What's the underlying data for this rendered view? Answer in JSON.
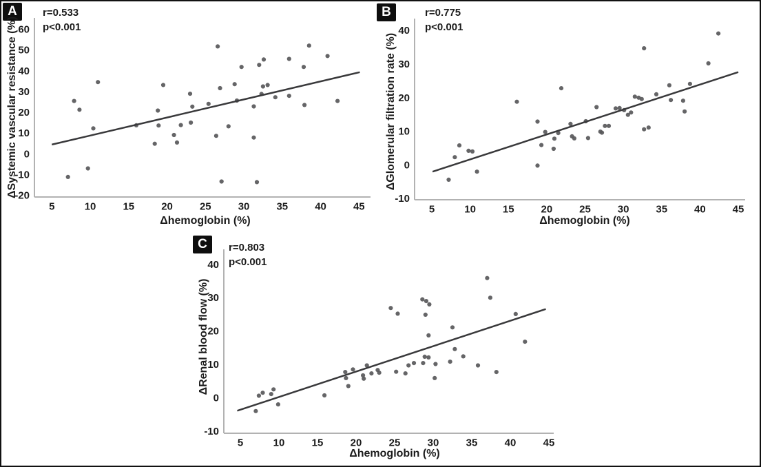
{
  "figure": {
    "background": "#ffffff",
    "border_color": "#111111"
  },
  "colors": {
    "point": "#58585a",
    "trendline": "#39393b",
    "axis": "#b2b2b2",
    "text": "#1c1c1c",
    "badge_bg": "#0e0e0e",
    "badge_text": "#ffffff"
  },
  "chart_data": [
    {
      "type": "scatter",
      "panel": "A",
      "annotation_r": "r=0.533",
      "annotation_p": "p<0.001",
      "xlabel": "Δhemoglobin (%)",
      "ylabel": "ΔSystemic vascular resistance (%)",
      "xticks": [
        5,
        10,
        15,
        20,
        25,
        30,
        35,
        40,
        45
      ],
      "yticks": [
        -20,
        -10,
        0,
        10,
        20,
        30,
        40,
        50,
        60
      ],
      "xlim": [
        2.7,
        46.5
      ],
      "ylim": [
        -20.7,
        65.6
      ],
      "grid": false,
      "legend": false,
      "trendline": [
        [
          5.0,
          4.6
        ],
        [
          45.1,
          39.5
        ]
      ],
      "points": [
        [
          7.1,
          -11.0
        ],
        [
          7.9,
          25.6
        ],
        [
          8.6,
          21.4
        ],
        [
          9.7,
          -6.9
        ],
        [
          10.4,
          12.4
        ],
        [
          11.0,
          34.7
        ],
        [
          16.0,
          13.9
        ],
        [
          18.4,
          5.0
        ],
        [
          18.8,
          21.0
        ],
        [
          18.9,
          13.8
        ],
        [
          19.5,
          33.3
        ],
        [
          20.9,
          9.2
        ],
        [
          21.3,
          5.6
        ],
        [
          21.8,
          14.0
        ],
        [
          23.0,
          29.1
        ],
        [
          23.1,
          15.2
        ],
        [
          23.3,
          22.9
        ],
        [
          25.4,
          24.2
        ],
        [
          26.4,
          8.8
        ],
        [
          26.6,
          51.9
        ],
        [
          26.9,
          31.8
        ],
        [
          27.1,
          -13.2
        ],
        [
          28.0,
          13.4
        ],
        [
          28.8,
          33.7
        ],
        [
          29.1,
          25.8
        ],
        [
          29.7,
          42.0
        ],
        [
          31.3,
          23.0
        ],
        [
          31.3,
          8.0
        ],
        [
          31.7,
          -13.5
        ],
        [
          32.0,
          43.0
        ],
        [
          32.3,
          29.0
        ],
        [
          32.5,
          32.6
        ],
        [
          32.6,
          45.6
        ],
        [
          33.1,
          33.3
        ],
        [
          34.1,
          27.4
        ],
        [
          35.9,
          45.9
        ],
        [
          35.9,
          28.1
        ],
        [
          37.8,
          42.0
        ],
        [
          37.9,
          23.7
        ],
        [
          38.5,
          52.3
        ],
        [
          40.9,
          47.3
        ],
        [
          42.2,
          25.6
        ]
      ]
    },
    {
      "type": "scatter",
      "panel": "B",
      "annotation_r": "r=0.775",
      "annotation_p": "p<0.001",
      "xlabel": "Δhemoglobin (%)",
      "ylabel": "ΔGlomerular filtration rate (%)",
      "xticks": [
        5,
        10,
        15,
        20,
        25,
        30,
        35,
        40,
        45
      ],
      "yticks": [
        -10,
        0,
        10,
        20,
        30,
        40
      ],
      "xlim": [
        2.75,
        45.9
      ],
      "ylim": [
        -10.3,
        43.6
      ],
      "grid": false,
      "legend": false,
      "trendline": [
        [
          5.1,
          -1.9
        ],
        [
          45.0,
          27.7
        ]
      ],
      "points": [
        [
          7.2,
          -4.3
        ],
        [
          8.0,
          2.4
        ],
        [
          8.6,
          5.9
        ],
        [
          9.8,
          4.3
        ],
        [
          10.3,
          4.1
        ],
        [
          10.9,
          -1.9
        ],
        [
          16.1,
          18.9
        ],
        [
          18.8,
          13.0
        ],
        [
          18.8,
          -0.1
        ],
        [
          19.3,
          6.0
        ],
        [
          19.8,
          9.9
        ],
        [
          20.9,
          4.9
        ],
        [
          21.0,
          7.9
        ],
        [
          21.5,
          9.6
        ],
        [
          21.9,
          22.9
        ],
        [
          23.1,
          12.3
        ],
        [
          23.3,
          8.6
        ],
        [
          23.6,
          8.0
        ],
        [
          25.1,
          13.1
        ],
        [
          25.4,
          8.1
        ],
        [
          26.5,
          17.3
        ],
        [
          27.0,
          10.0
        ],
        [
          27.2,
          9.7
        ],
        [
          27.6,
          11.7
        ],
        [
          28.1,
          11.7
        ],
        [
          29.0,
          16.9
        ],
        [
          29.5,
          17.0
        ],
        [
          30.1,
          16.4
        ],
        [
          30.6,
          15.0
        ],
        [
          31.0,
          15.7
        ],
        [
          31.5,
          20.4
        ],
        [
          32.0,
          20.1
        ],
        [
          32.4,
          19.7
        ],
        [
          32.7,
          10.7
        ],
        [
          33.3,
          11.2
        ],
        [
          32.7,
          34.8
        ],
        [
          34.3,
          21.1
        ],
        [
          36.0,
          23.8
        ],
        [
          36.2,
          19.4
        ],
        [
          37.8,
          19.2
        ],
        [
          38.0,
          16.0
        ],
        [
          38.7,
          24.2
        ],
        [
          41.1,
          30.3
        ],
        [
          42.4,
          39.2
        ]
      ]
    },
    {
      "type": "scatter",
      "panel": "C",
      "annotation_r": "r=0.803",
      "annotation_p": "p<0.001",
      "xlabel": "Δhemoglobin (%)",
      "ylabel": "ΔRenal blood flow (%)",
      "xticks": [
        5,
        10,
        15,
        20,
        25,
        30,
        35,
        40,
        45
      ],
      "yticks": [
        -10,
        0,
        10,
        20,
        30,
        40
      ],
      "xlim": [
        2.86,
        45.4
      ],
      "ylim": [
        -10.6,
        44.6
      ],
      "grid": false,
      "legend": false,
      "trendline": [
        [
          4.6,
          -3.8
        ],
        [
          44.6,
          26.7
        ]
      ],
      "points": [
        [
          7.0,
          -3.9
        ],
        [
          7.4,
          0.7
        ],
        [
          7.9,
          1.6
        ],
        [
          9.0,
          1.2
        ],
        [
          9.3,
          2.6
        ],
        [
          9.9,
          -1.9
        ],
        [
          15.9,
          0.8
        ],
        [
          18.6,
          7.8
        ],
        [
          18.7,
          6.0
        ],
        [
          19.0,
          3.6
        ],
        [
          19.6,
          8.6
        ],
        [
          20.9,
          6.8
        ],
        [
          21.0,
          5.8
        ],
        [
          21.4,
          9.8
        ],
        [
          22.0,
          7.4
        ],
        [
          22.8,
          8.4
        ],
        [
          23.0,
          7.6
        ],
        [
          24.5,
          27.0
        ],
        [
          25.2,
          7.9
        ],
        [
          25.4,
          25.3
        ],
        [
          26.4,
          7.4
        ],
        [
          26.8,
          9.8
        ],
        [
          27.5,
          10.5
        ],
        [
          28.6,
          29.6
        ],
        [
          28.7,
          10.5
        ],
        [
          28.9,
          12.4
        ],
        [
          29.0,
          25.0
        ],
        [
          29.1,
          29.1
        ],
        [
          29.4,
          12.2
        ],
        [
          29.5,
          28.1
        ],
        [
          29.4,
          18.8
        ],
        [
          30.2,
          6.0
        ],
        [
          30.3,
          10.2
        ],
        [
          32.2,
          10.9
        ],
        [
          32.5,
          21.2
        ],
        [
          32.8,
          14.7
        ],
        [
          33.9,
          12.5
        ],
        [
          35.8,
          9.8
        ],
        [
          37.0,
          36.0
        ],
        [
          37.4,
          30.1
        ],
        [
          38.2,
          7.8
        ],
        [
          40.7,
          25.2
        ],
        [
          41.9,
          16.9
        ]
      ]
    }
  ]
}
